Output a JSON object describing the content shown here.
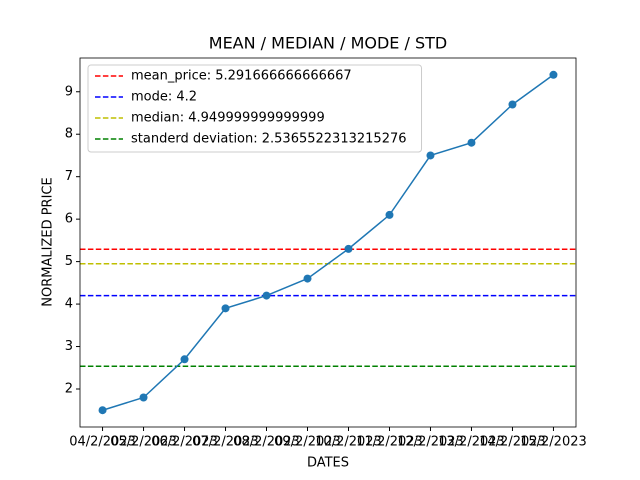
{
  "chart_data": {
    "type": "line",
    "title": "MEAN / MEDIAN / MODE / STD",
    "xlabel": "DATES",
    "ylabel": "NORMALIZED PRICE",
    "categories": [
      "04/2/2023",
      "05/2/2023",
      "06/2/2023",
      "07/2/2023",
      "08/2/2023",
      "09/2/2023",
      "10/2/2023",
      "11/2/2023",
      "12/2/2023",
      "13/2/2023",
      "14/2/2023",
      "15/2/2023"
    ],
    "series": [
      {
        "color": "#1f77b4",
        "values": [
          1.5,
          1.8,
          2.7,
          3.9,
          4.2,
          4.6,
          5.3,
          6.1,
          7.5,
          7.8,
          8.7,
          9.4
        ]
      }
    ],
    "hlines": [
      {
        "name": "mean_price: 5.291666666666667",
        "value": 5.291666666666667,
        "color": "#ff0000"
      },
      {
        "name": "mode: 4.2",
        "value": 4.2,
        "color": "#0000ff"
      },
      {
        "name": "median: 4.949999999999999",
        "value": 4.949999999999999,
        "color": "#bfbf00"
      },
      {
        "name": "standerd deviation: 2.5365522313215276",
        "value": 2.5365522313215276,
        "color": "#008000"
      }
    ],
    "ylim": [
      1.105,
      9.795
    ],
    "yticks": [
      2,
      3,
      4,
      5,
      6,
      7,
      8,
      9
    ],
    "legend": "upper left"
  }
}
